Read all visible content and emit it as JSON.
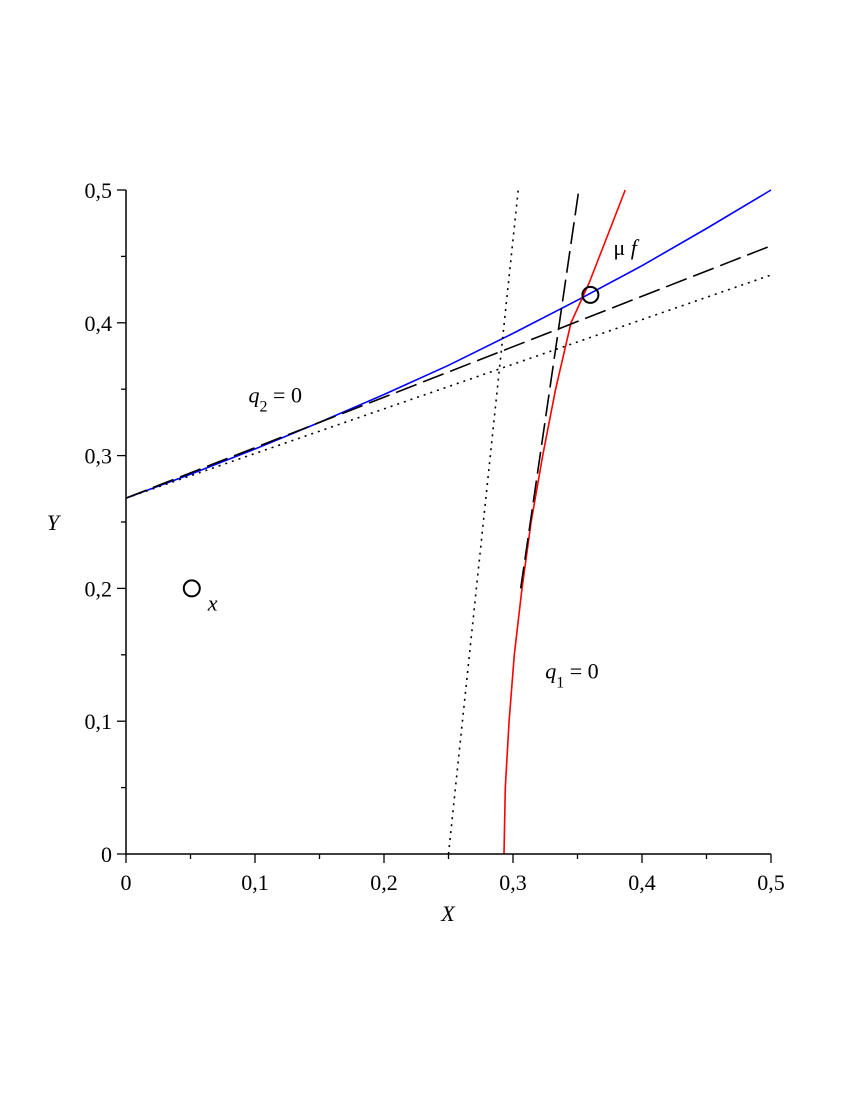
{
  "chart_data": {
    "type": "line",
    "title": "",
    "xlabel": "X",
    "ylabel": "Y",
    "xlim": [
      0,
      0.5
    ],
    "ylim": [
      0,
      0.5
    ],
    "x_ticks": [
      "0",
      "0,1",
      "0,2",
      "0,3",
      "0,4",
      "0,5"
    ],
    "y_ticks": [
      "0",
      "0,1",
      "0,2",
      "0,3",
      "0,4",
      "0,5"
    ],
    "grid": false,
    "series": [
      {
        "color": "#0000ff",
        "style": "solid",
        "x": [
          0,
          0.05,
          0.1,
          0.15,
          0.2,
          0.25,
          0.3,
          0.35,
          0.4,
          0.45,
          0.5
        ],
        "y": [
          0.268,
          0.286,
          0.305,
          0.325,
          0.346,
          0.368,
          0.392,
          0.417,
          0.443,
          0.471,
          0.5
        ]
      },
      {
        "color": "#ff0000",
        "style": "solid",
        "x": [
          0.293,
          0.294,
          0.297,
          0.301,
          0.307,
          0.314,
          0.323,
          0.333,
          0.345,
          0.359,
          0.373,
          0.387
        ],
        "y": [
          0,
          0.05,
          0.1,
          0.15,
          0.2,
          0.25,
          0.3,
          0.35,
          0.4,
          0.43,
          0.465,
          0.5
        ]
      },
      {
        "color": "#000000",
        "style": "dashed",
        "x": [
          0,
          0.5
        ],
        "y": [
          0.268,
          0.458
        ]
      },
      {
        "color": "#000000",
        "style": "dashed",
        "x": [
          0.306,
          0.351
        ],
        "y": [
          0.2,
          0.5
        ]
      },
      {
        "color": "#000000",
        "style": "dotted",
        "x": [
          0,
          0.5
        ],
        "y": [
          0.268,
          0.436
        ]
      },
      {
        "color": "#000000",
        "style": "dotted",
        "x": [
          0.25,
          0.304
        ],
        "y": [
          0,
          0.5
        ]
      }
    ],
    "points": [
      {
        "label": "x",
        "x": 0.051,
        "y": 0.2
      },
      {
        "label": "μf",
        "x": 0.36,
        "y": 0.421
      }
    ],
    "annotations": {
      "q2": {
        "var": "q",
        "sub": "2",
        "rest": " = 0",
        "x": 0.095,
        "y": 0.34
      },
      "q1": {
        "var": "q",
        "sub": "1",
        "rest": " = 0",
        "x": 0.325,
        "y": 0.132
      }
    }
  }
}
